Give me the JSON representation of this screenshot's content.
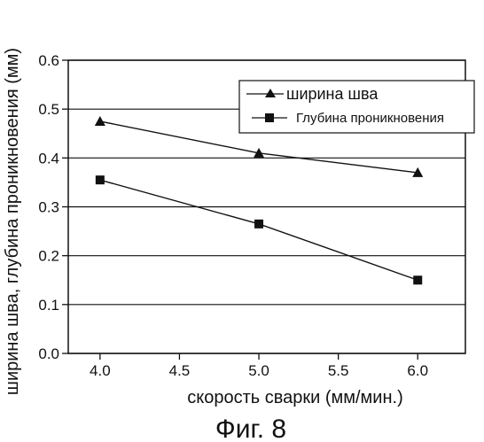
{
  "chart_data": {
    "type": "line",
    "x": [
      4.0,
      5.0,
      6.0
    ],
    "xlim": [
      3.8,
      6.3
    ],
    "ylim": [
      0.0,
      0.6
    ],
    "xticks": [
      4.0,
      4.5,
      5.0,
      5.5,
      6.0
    ],
    "yticks": [
      0.0,
      0.1,
      0.2,
      0.3,
      0.4,
      0.5,
      0.6
    ],
    "xtick_labels": [
      "4.0",
      "4.5",
      "5.0",
      "5.5",
      "6.0"
    ],
    "ytick_labels": [
      "0.0",
      "0.1",
      "0.2",
      "0.3",
      "0.4",
      "0.5",
      "0.6"
    ],
    "xlabel": "скорость сварки (мм/мин.)",
    "ylabel": "ширина шва, глубина проникновения (мм)",
    "grid": "horizontal",
    "legend_position": "top-right",
    "series": [
      {
        "name": "ширина шва",
        "marker": "triangle",
        "color": "#111111",
        "values": [
          0.475,
          0.41,
          0.37
        ]
      },
      {
        "name": "Глубина проникновения",
        "marker": "square",
        "color": "#111111",
        "values": [
          0.355,
          0.265,
          0.15
        ]
      }
    ]
  },
  "caption": "Фиг. 8"
}
